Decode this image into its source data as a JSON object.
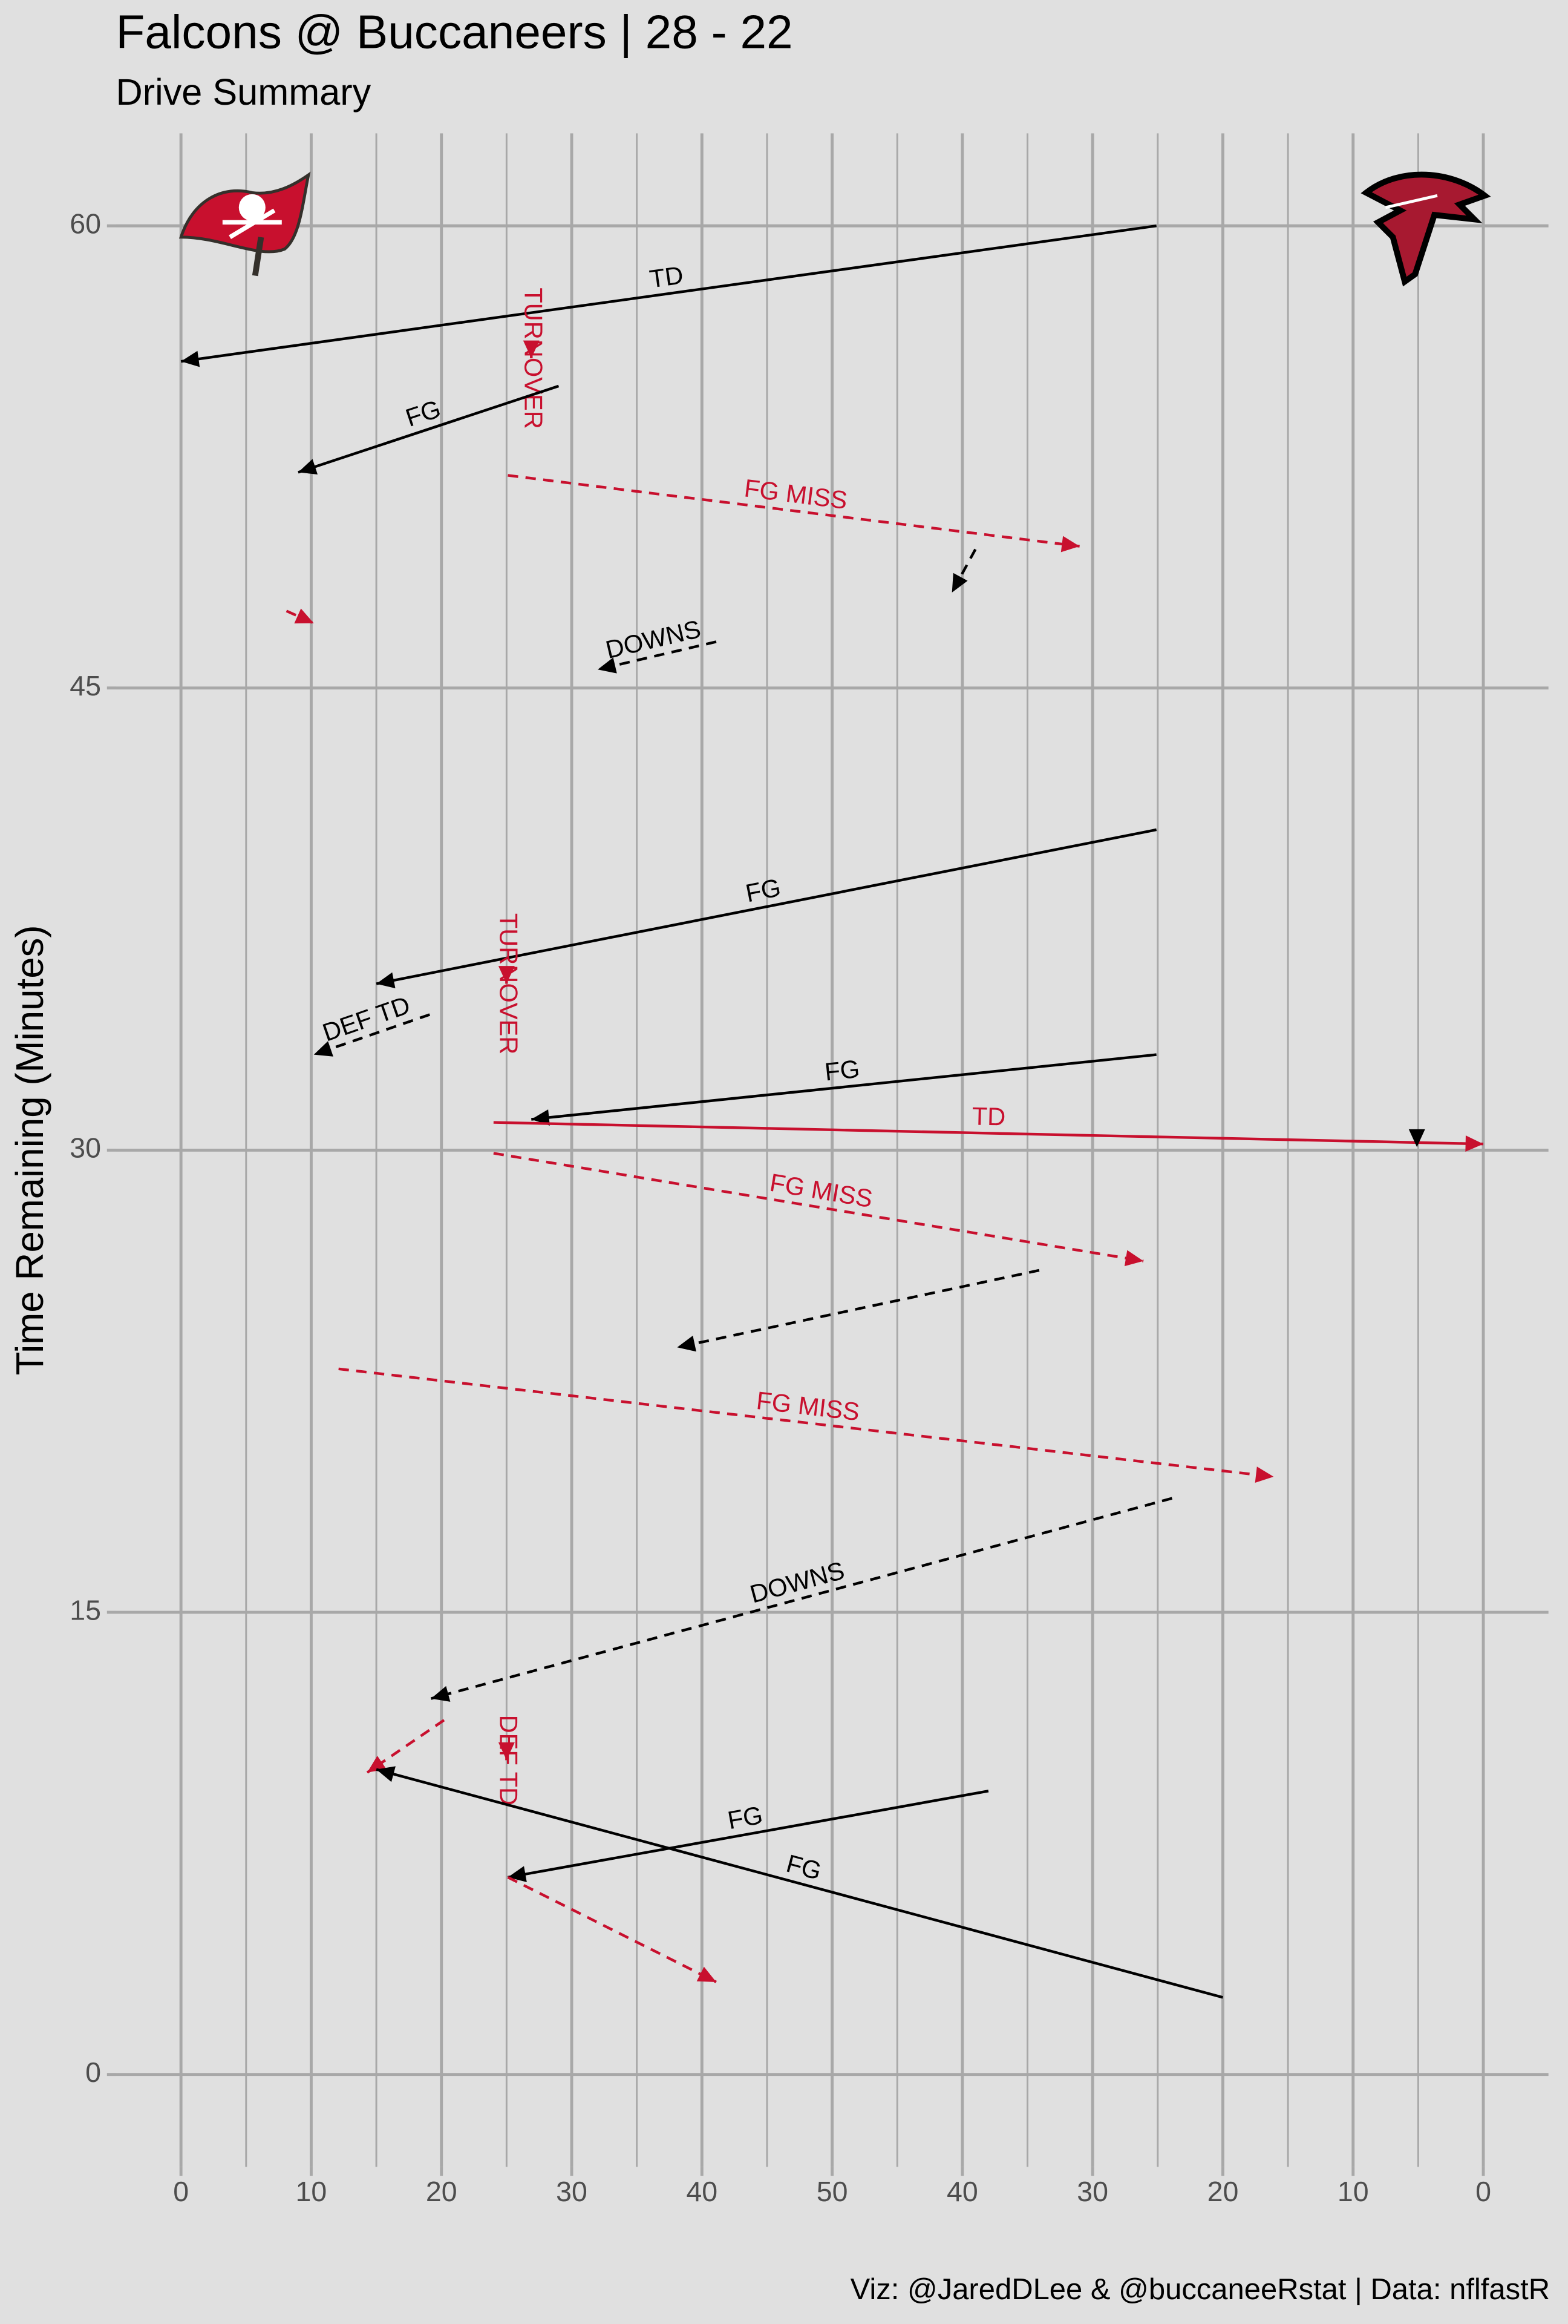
{
  "chart_data": {
    "type": "drive-chart",
    "title": "Falcons @ Buccaneers | 28 - 22",
    "subtitle": "Drive Summary",
    "y_label": "Time Remaining (Minutes)",
    "caption": "Viz: @JaredDLee & @buccaneeRstat | Data: nflfastR",
    "xlim": [
      -5,
      105
    ],
    "ylim": [
      -3,
      63
    ],
    "yticks": [
      0,
      15,
      30,
      45,
      60
    ],
    "xticks": [
      0,
      10,
      20,
      30,
      40,
      50,
      {
        "value": 60,
        "label": "40"
      },
      {
        "value": 70,
        "label": "30"
      },
      {
        "value": 80,
        "label": "20"
      },
      {
        "value": 90,
        "label": "10"
      },
      {
        "value": 100,
        "label": "0"
      }
    ],
    "x_minor_ticks": [
      5,
      15,
      25,
      35,
      45,
      55,
      65,
      75,
      85,
      95
    ],
    "grid": true,
    "drives": [
      {
        "x0": 74.9,
        "y0": 60,
        "x1": 0,
        "y1": 55.6,
        "color": "#000000",
        "dashed": false,
        "label": "TD"
      },
      {
        "x0": 26.9,
        "y0": 55.9,
        "x1": 26.9,
        "y1": 55.7,
        "color": "#c8102e",
        "dashed": false,
        "label": "TURNOVER"
      },
      {
        "x0": 29.0,
        "y0": 54.8,
        "x1": 9.0,
        "y1": 52.0,
        "color": "#000000",
        "dashed": false,
        "label": "FG"
      },
      {
        "x0": 25.1,
        "y0": 51.9,
        "x1": 69.0,
        "y1": 49.6,
        "color": "#c8102e",
        "dashed": true,
        "label": "FG MISS"
      },
      {
        "x0": 61.0,
        "y0": 49.5,
        "x1": 59.2,
        "y1": 48.1,
        "color": "#000000",
        "dashed": true,
        "label": null
      },
      {
        "x0": 8.1,
        "y0": 47.5,
        "x1": 10.2,
        "y1": 47.1,
        "color": "#c8102e",
        "dashed": true,
        "label": null
      },
      {
        "x0": 41.1,
        "y0": 46.5,
        "x1": 32.0,
        "y1": 45.6,
        "color": "#000000",
        "dashed": true,
        "label": "DOWNS"
      },
      {
        "x0": 74.9,
        "y0": 40.4,
        "x1": 15.0,
        "y1": 35.4,
        "color": "#000000",
        "dashed": false,
        "label": "FG"
      },
      {
        "x0": 25.0,
        "y0": 35.6,
        "x1": 25.0,
        "y1": 35.4,
        "color": "#c8102e",
        "dashed": false,
        "label": "TURNOVER"
      },
      {
        "x0": 19.1,
        "y0": 34.4,
        "x1": 10.2,
        "y1": 33.1,
        "color": "#000000",
        "dashed": true,
        "label": "DEF TD"
      },
      {
        "x0": 74.9,
        "y0": 33.1,
        "x1": 26.9,
        "y1": 31.0,
        "color": "#000000",
        "dashed": false,
        "label": "FG"
      },
      {
        "x0": 24.0,
        "y0": 30.9,
        "x1": 100,
        "y1": 30.2,
        "color": "#c8102e",
        "dashed": false,
        "label": "TD"
      },
      {
        "x0": 94.9,
        "y0": 30.6,
        "x1": 94.9,
        "y1": 30.1,
        "color": "#000000",
        "dashed": true,
        "label": null
      },
      {
        "x0": 24.0,
        "y0": 29.9,
        "x1": 73.9,
        "y1": 26.4,
        "color": "#c8102e",
        "dashed": true,
        "label": "FG MISS"
      },
      {
        "x0": 65.9,
        "y0": 26.1,
        "x1": 38.1,
        "y1": 23.6,
        "color": "#000000",
        "dashed": true,
        "label": null
      },
      {
        "x0": 12.1,
        "y0": 22.9,
        "x1": 83.9,
        "y1": 19.4,
        "color": "#c8102e",
        "dashed": true,
        "label": "FG MISS"
      },
      {
        "x0": 76.1,
        "y0": 18.7,
        "x1": 19.2,
        "y1": 12.2,
        "color": "#000000",
        "dashed": true,
        "label": "DOWNS"
      },
      {
        "x0": 20.2,
        "y0": 11.5,
        "x1": 14.3,
        "y1": 9.8,
        "color": "#c8102e",
        "dashed": true,
        "label": null
      },
      {
        "x0": 25.0,
        "y0": 10.5,
        "x1": 25.0,
        "y1": 10.2,
        "color": "#c8102e",
        "dashed": false,
        "label": "DEF TD"
      },
      {
        "x0": 80.0,
        "y0": 2.5,
        "x1": 15.0,
        "y1": 9.9,
        "color": "#000000",
        "dashed": false,
        "label": "FG"
      },
      {
        "x0": 62.0,
        "y0": 9.2,
        "x1": 25.1,
        "y1": 6.4,
        "color": "#000000",
        "dashed": false,
        "label": "FG"
      },
      {
        "x0": 25.1,
        "y0": 6.4,
        "x1": 41.1,
        "y1": 3.0,
        "color": "#c8102e",
        "dashed": true,
        "label": null
      }
    ]
  }
}
